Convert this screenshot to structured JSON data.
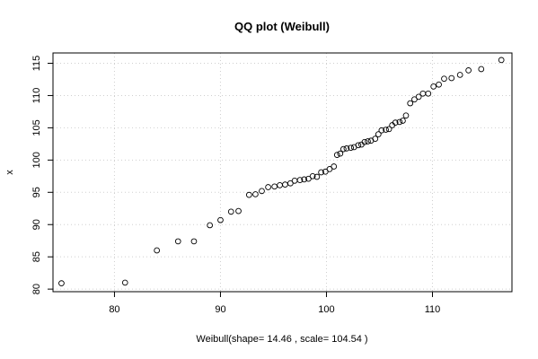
{
  "chart_data": {
    "type": "scatter",
    "title": "QQ plot (Weibull)",
    "xlabel": "Weibull(shape= 14.46 , scale= 104.54 )",
    "ylabel": "x",
    "xlim": [
      74.2,
      117.5
    ],
    "ylim": [
      79.6,
      116.6
    ],
    "xticks": [
      80,
      90,
      100,
      110
    ],
    "yticks": [
      80,
      85,
      90,
      95,
      100,
      105,
      110,
      115
    ],
    "grid": true,
    "points": [
      [
        75.0,
        80.9
      ],
      [
        81.0,
        81.0
      ],
      [
        84.0,
        86.0
      ],
      [
        86.0,
        87.4
      ],
      [
        87.5,
        87.4
      ],
      [
        89.0,
        89.9
      ],
      [
        90.0,
        90.7
      ],
      [
        91.0,
        92.0
      ],
      [
        91.7,
        92.1
      ],
      [
        92.7,
        94.6
      ],
      [
        93.3,
        94.7
      ],
      [
        93.9,
        95.2
      ],
      [
        94.5,
        95.8
      ],
      [
        95.1,
        95.9
      ],
      [
        95.6,
        96.1
      ],
      [
        96.1,
        96.2
      ],
      [
        96.6,
        96.4
      ],
      [
        97.0,
        96.8
      ],
      [
        97.5,
        96.9
      ],
      [
        97.9,
        97.0
      ],
      [
        98.3,
        97.1
      ],
      [
        98.7,
        97.5
      ],
      [
        99.1,
        97.4
      ],
      [
        99.5,
        98.1
      ],
      [
        99.9,
        98.2
      ],
      [
        100.3,
        98.6
      ],
      [
        100.7,
        99.0
      ],
      [
        101.0,
        100.8
      ],
      [
        101.3,
        101.0
      ],
      [
        101.6,
        101.7
      ],
      [
        101.9,
        101.8
      ],
      [
        102.3,
        101.9
      ],
      [
        102.6,
        102.0
      ],
      [
        103.0,
        102.3
      ],
      [
        103.3,
        102.4
      ],
      [
        103.6,
        102.8
      ],
      [
        103.9,
        102.9
      ],
      [
        104.2,
        103.0
      ],
      [
        104.6,
        103.3
      ],
      [
        104.9,
        104.0
      ],
      [
        105.2,
        104.6
      ],
      [
        105.6,
        104.7
      ],
      [
        105.9,
        104.8
      ],
      [
        106.2,
        105.4
      ],
      [
        106.5,
        105.8
      ],
      [
        106.9,
        105.9
      ],
      [
        107.2,
        106.1
      ],
      [
        107.5,
        106.9
      ],
      [
        107.9,
        108.8
      ],
      [
        108.3,
        109.4
      ],
      [
        108.7,
        109.8
      ],
      [
        109.1,
        110.3
      ],
      [
        109.6,
        110.3
      ],
      [
        110.1,
        111.4
      ],
      [
        110.6,
        111.7
      ],
      [
        111.1,
        112.6
      ],
      [
        111.8,
        112.7
      ],
      [
        112.6,
        113.2
      ],
      [
        113.4,
        113.9
      ],
      [
        114.6,
        114.1
      ],
      [
        116.5,
        115.5
      ]
    ]
  }
}
